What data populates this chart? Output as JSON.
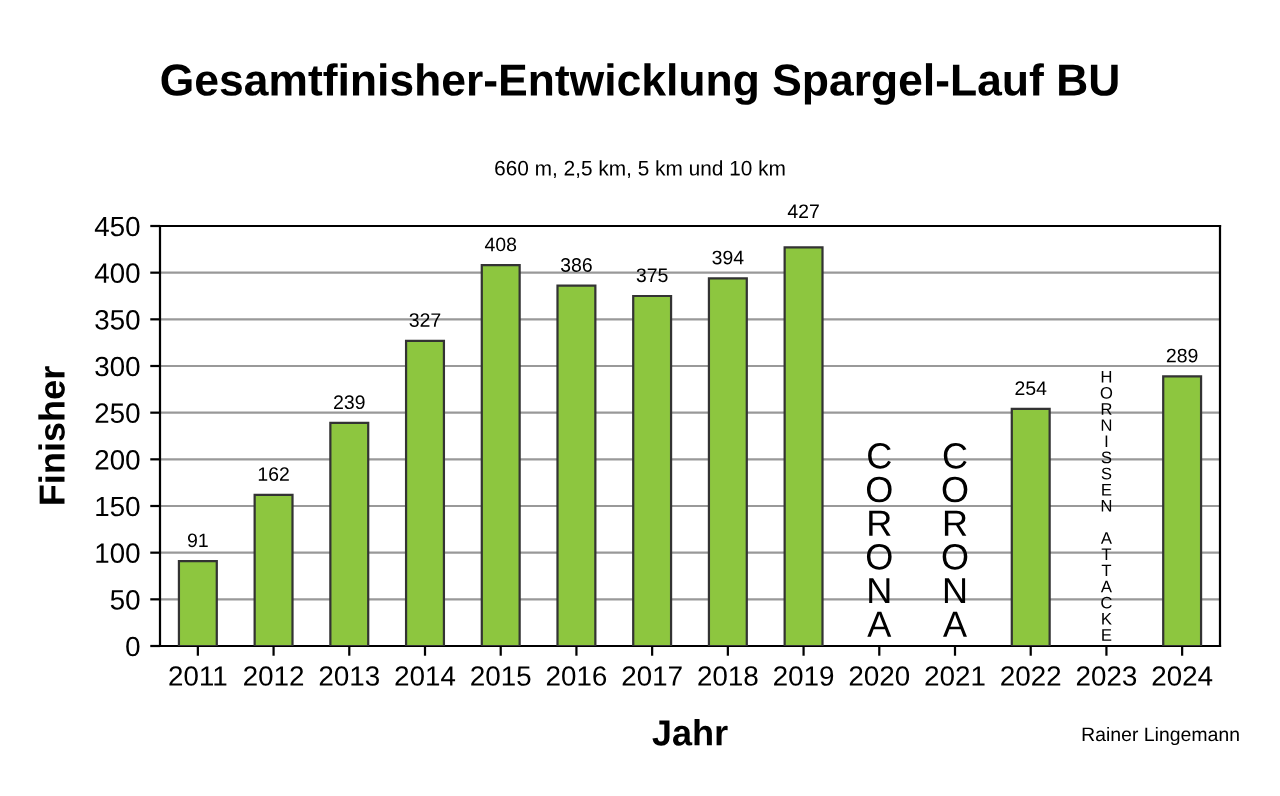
{
  "chart_data": {
    "type": "bar",
    "title": "Gesamtfinisher-Entwicklung Spargel-Lauf BU",
    "subtitle": "660 m, 2,5 km, 5 km und 10 km",
    "xlabel": "Jahr",
    "ylabel": "Finisher",
    "categories": [
      "2011",
      "2012",
      "2013",
      "2014",
      "2015",
      "2016",
      "2017",
      "2018",
      "2019",
      "2020",
      "2021",
      "2022",
      "2023",
      "2024"
    ],
    "values": [
      91,
      162,
      239,
      327,
      408,
      386,
      375,
      394,
      427,
      null,
      null,
      254,
      null,
      289
    ],
    "color": "#8dc63f",
    "data_labels": true,
    "ylim": [
      0,
      450
    ],
    "yticks": [
      0,
      50,
      100,
      150,
      200,
      250,
      300,
      350,
      400,
      450
    ],
    "grid": "y",
    "legend": false,
    "annotations": [
      "CORONA",
      "CORONA",
      "HORNISSEN ATTACKE",
      "Rainer Lingemann"
    ]
  }
}
